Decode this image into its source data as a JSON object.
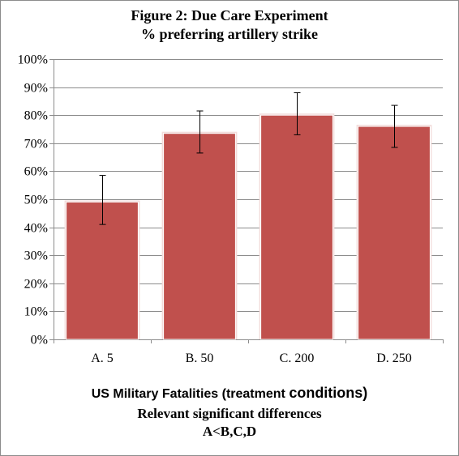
{
  "chart_data": {
    "type": "bar",
    "title": "Figure 2: Due Care Experiment",
    "subtitle": "% preferring  artillery strike",
    "categories": [
      "A. 5",
      "B. 50",
      "C. 200",
      "D. 250"
    ],
    "values": [
      0.49,
      0.735,
      0.8,
      0.76
    ],
    "error_low": [
      0.41,
      0.665,
      0.73,
      0.685
    ],
    "error_high": [
      0.585,
      0.815,
      0.88,
      0.835
    ],
    "xlabel_part1": "US Military Fatalities (treatment ",
    "xlabel_part2": "conditions)",
    "ylim": [
      0,
      1
    ],
    "yticks": [
      {
        "value": 0,
        "label": "0%"
      },
      {
        "value": 0.1,
        "label": "10%"
      },
      {
        "value": 0.2,
        "label": "20%"
      },
      {
        "value": 0.3,
        "label": "30%"
      },
      {
        "value": 0.4,
        "label": "40%"
      },
      {
        "value": 0.5,
        "label": "50%"
      },
      {
        "value": 0.6,
        "label": "60%"
      },
      {
        "value": 0.7,
        "label": "70%"
      },
      {
        "value": 0.8,
        "label": "80%"
      },
      {
        "value": 0.9,
        "label": "90%"
      },
      {
        "value": 1.0,
        "label": "100%"
      }
    ],
    "grid": true,
    "legend": "none",
    "bar_color": "#c0504d",
    "notes": [
      "Relevant significant differences",
      "A<B,C,D"
    ]
  }
}
